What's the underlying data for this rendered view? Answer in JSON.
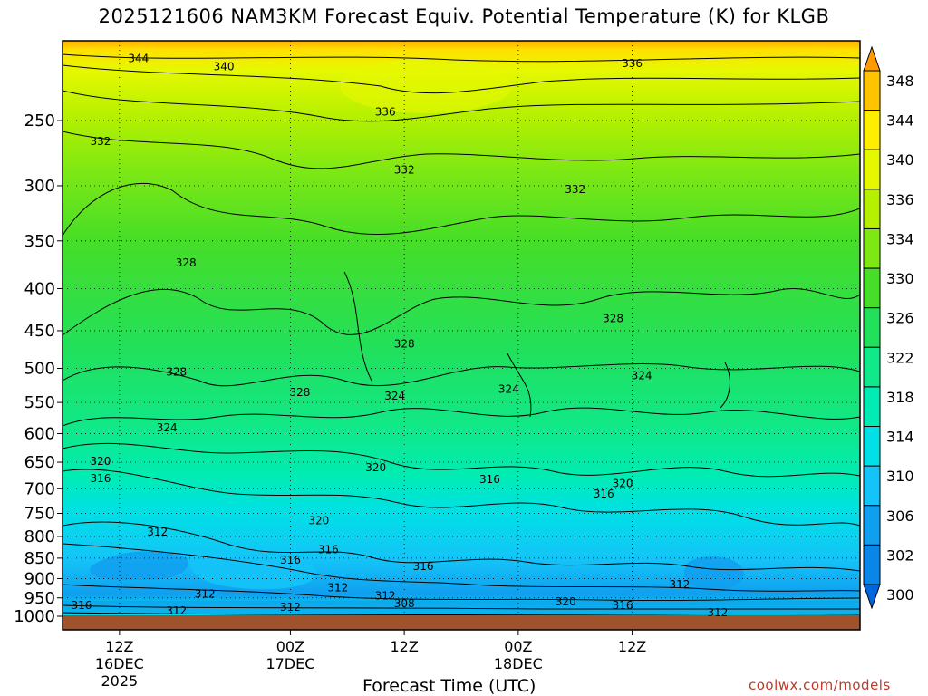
{
  "chart_data": {
    "type": "contour",
    "title": "2025121606 NAM3KM Forecast Equiv. Potential Temperature (K) for KLGB",
    "xlabel": "Forecast Time (UTC)",
    "ylabel": "",
    "y_axis": {
      "scale": "log",
      "units": "hPa",
      "range": [
        1000,
        200
      ],
      "ticks": [
        250,
        300,
        350,
        400,
        450,
        500,
        550,
        600,
        650,
        700,
        750,
        800,
        850,
        900,
        950,
        1000
      ]
    },
    "x_axis": {
      "range_hours_from_init": [
        0,
        84
      ],
      "ticks": [
        {
          "hour": 6,
          "lines": [
            "12Z",
            "16DEC",
            "2025"
          ]
        },
        {
          "hour": 24,
          "lines": [
            "00Z",
            "17DEC"
          ]
        },
        {
          "hour": 36,
          "lines": [
            "12Z"
          ]
        },
        {
          "hour": 48,
          "lines": [
            "00Z",
            "18DEC"
          ]
        },
        {
          "hour": 60,
          "lines": [
            "12Z"
          ]
        }
      ]
    },
    "colorbar": {
      "units": "K",
      "levels": [
        300,
        302,
        306,
        310,
        314,
        318,
        322,
        326,
        330,
        334,
        336,
        340,
        344,
        348
      ],
      "labels": [
        "300",
        "302",
        "306",
        "310",
        "314",
        "318",
        "322",
        "326",
        "330",
        "334",
        "336",
        "340",
        "344",
        "348"
      ],
      "colors": [
        "#0066dd",
        "#0a86e8",
        "#109fef",
        "#14c4f8",
        "#00e0e6",
        "#00ecb4",
        "#10e88a",
        "#22e05a",
        "#46de28",
        "#7ee814",
        "#b4f000",
        "#e6f800",
        "#ffee00",
        "#ffc400",
        "#ff9a00"
      ]
    },
    "contour_interval_K": 4,
    "contour_labels": [
      {
        "text": "344",
        "hour": 8,
        "pressure": 210
      },
      {
        "text": "340",
        "hour": 17,
        "pressure": 215
      },
      {
        "text": "336",
        "hour": 60,
        "pressure": 213
      },
      {
        "text": "336",
        "hour": 34,
        "pressure": 244
      },
      {
        "text": "332",
        "hour": 4,
        "pressure": 265
      },
      {
        "text": "332",
        "hour": 36,
        "pressure": 287
      },
      {
        "text": "332",
        "hour": 54,
        "pressure": 303
      },
      {
        "text": "328",
        "hour": 13,
        "pressure": 372
      },
      {
        "text": "328",
        "hour": 36,
        "pressure": 467
      },
      {
        "text": "328",
        "hour": 58,
        "pressure": 435
      },
      {
        "text": "328",
        "hour": 12,
        "pressure": 505
      },
      {
        "text": "328",
        "hour": 25,
        "pressure": 535
      },
      {
        "text": "324",
        "hour": 11,
        "pressure": 590
      },
      {
        "text": "324",
        "hour": 35,
        "pressure": 540
      },
      {
        "text": "324",
        "hour": 47,
        "pressure": 530
      },
      {
        "text": "324",
        "hour": 61,
        "pressure": 510
      },
      {
        "text": "320",
        "hour": 4,
        "pressure": 648
      },
      {
        "text": "320",
        "hour": 33,
        "pressure": 660
      },
      {
        "text": "320",
        "hour": 59,
        "pressure": 690
      },
      {
        "text": "320",
        "hour": 27,
        "pressure": 765
      },
      {
        "text": "320",
        "hour": 53,
        "pressure": 960
      },
      {
        "text": "316",
        "hour": 4,
        "pressure": 680
      },
      {
        "text": "316",
        "hour": 45,
        "pressure": 682
      },
      {
        "text": "316",
        "hour": 57,
        "pressure": 710
      },
      {
        "text": "316",
        "hour": 24,
        "pressure": 855
      },
      {
        "text": "316",
        "hour": 28,
        "pressure": 830
      },
      {
        "text": "316",
        "hour": 38,
        "pressure": 870
      },
      {
        "text": "316",
        "hour": 2,
        "pressure": 970
      },
      {
        "text": "316",
        "hour": 59,
        "pressure": 970
      },
      {
        "text": "312",
        "hour": 10,
        "pressure": 790
      },
      {
        "text": "312",
        "hour": 29,
        "pressure": 923
      },
      {
        "text": "312",
        "hour": 15,
        "pressure": 940
      },
      {
        "text": "312",
        "hour": 34,
        "pressure": 945
      },
      {
        "text": "312",
        "hour": 65,
        "pressure": 915
      },
      {
        "text": "312",
        "hour": 12,
        "pressure": 985
      },
      {
        "text": "312",
        "hour": 24,
        "pressure": 975
      },
      {
        "text": "312",
        "hour": 69,
        "pressure": 990
      },
      {
        "text": "308",
        "hour": 36,
        "pressure": 965
      }
    ],
    "surface_band": "below ground (brown)"
  },
  "credit": "coolwx.com/models"
}
